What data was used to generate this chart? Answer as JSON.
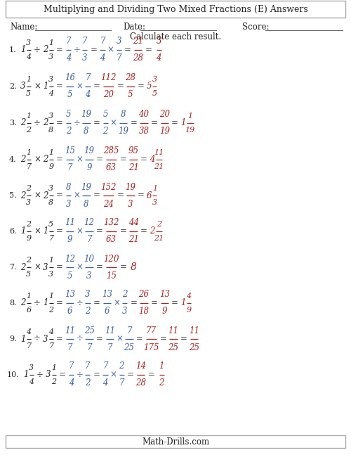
{
  "title": "Multiplying and Dividing Two Mixed Fractions (E) Answers",
  "instruction": "Calculate each result.",
  "footer": "Math-Drills.com",
  "problems": [
    {
      "num": "1.",
      "q_whole1": "1",
      "q_num1": "3",
      "q_den1": "4",
      "op": "÷",
      "q_whole2": "2",
      "q_num2": "1",
      "q_den2": "3",
      "s1_num1": "7",
      "s1_den1": "4",
      "s1_op": "÷",
      "s1_num2": "7",
      "s1_den2": "3",
      "s2_num1": "7",
      "s2_den1": "4",
      "s2_op": "×",
      "s2_num2": "3",
      "s2_den2": "7",
      "s3_num": "21",
      "s3_den": "28",
      "s4_num": "",
      "s4_den": "",
      "ans_whole": "",
      "ans_num": "3",
      "ans_den": "4"
    },
    {
      "num": "2.",
      "q_whole1": "3",
      "q_num1": "1",
      "q_den1": "5",
      "op": "×",
      "q_whole2": "1",
      "q_num2": "3",
      "q_den2": "4",
      "s1_num1": "16",
      "s1_den1": "5",
      "s1_op": "×",
      "s1_num2": "7",
      "s1_den2": "4",
      "s2_num1": "",
      "s2_den1": "",
      "s2_op": "",
      "s2_num2": "",
      "s2_den2": "",
      "s3_num": "112",
      "s3_den": "20",
      "s4_num": "28",
      "s4_den": "5",
      "ans_whole": "5",
      "ans_num": "3",
      "ans_den": "5"
    },
    {
      "num": "3.",
      "q_whole1": "2",
      "q_num1": "1",
      "q_den1": "2",
      "op": "÷",
      "q_whole2": "2",
      "q_num2": "3",
      "q_den2": "8",
      "s1_num1": "5",
      "s1_den1": "2",
      "s1_op": "÷",
      "s1_num2": "19",
      "s1_den2": "8",
      "s2_num1": "5",
      "s2_den1": "2",
      "s2_op": "×",
      "s2_num2": "8",
      "s2_den2": "19",
      "s3_num": "40",
      "s3_den": "38",
      "s4_num": "20",
      "s4_den": "19",
      "ans_whole": "1",
      "ans_num": "1",
      "ans_den": "19"
    },
    {
      "num": "4.",
      "q_whole1": "2",
      "q_num1": "1",
      "q_den1": "7",
      "op": "×",
      "q_whole2": "2",
      "q_num2": "1",
      "q_den2": "9",
      "s1_num1": "15",
      "s1_den1": "7",
      "s1_op": "×",
      "s1_num2": "19",
      "s1_den2": "9",
      "s2_num1": "",
      "s2_den1": "",
      "s2_op": "",
      "s2_num2": "",
      "s2_den2": "",
      "s3_num": "285",
      "s3_den": "63",
      "s4_num": "95",
      "s4_den": "21",
      "ans_whole": "4",
      "ans_num": "11",
      "ans_den": "21"
    },
    {
      "num": "5.",
      "q_whole1": "2",
      "q_num1": "2",
      "q_den1": "3",
      "op": "×",
      "q_whole2": "2",
      "q_num2": "3",
      "q_den2": "8",
      "s1_num1": "8",
      "s1_den1": "3",
      "s1_op": "×",
      "s1_num2": "19",
      "s1_den2": "8",
      "s2_num1": "",
      "s2_den1": "",
      "s2_op": "",
      "s2_num2": "",
      "s2_den2": "",
      "s3_num": "152",
      "s3_den": "24",
      "s4_num": "19",
      "s4_den": "3",
      "ans_whole": "6",
      "ans_num": "1",
      "ans_den": "3"
    },
    {
      "num": "6.",
      "q_whole1": "1",
      "q_num1": "2",
      "q_den1": "9",
      "op": "×",
      "q_whole2": "1",
      "q_num2": "5",
      "q_den2": "7",
      "s1_num1": "11",
      "s1_den1": "9",
      "s1_op": "×",
      "s1_num2": "12",
      "s1_den2": "7",
      "s2_num1": "",
      "s2_den1": "",
      "s2_op": "",
      "s2_num2": "",
      "s2_den2": "",
      "s3_num": "132",
      "s3_den": "63",
      "s4_num": "44",
      "s4_den": "21",
      "ans_whole": "2",
      "ans_num": "2",
      "ans_den": "21"
    },
    {
      "num": "7.",
      "q_whole1": "2",
      "q_num1": "2",
      "q_den1": "5",
      "op": "×",
      "q_whole2": "3",
      "q_num2": "1",
      "q_den2": "3",
      "s1_num1": "12",
      "s1_den1": "5",
      "s1_op": "×",
      "s1_num2": "10",
      "s1_den2": "3",
      "s2_num1": "",
      "s2_den1": "",
      "s2_op": "",
      "s2_num2": "",
      "s2_den2": "",
      "s3_num": "120",
      "s3_den": "15",
      "s4_num": "",
      "s4_den": "",
      "ans_whole": "8",
      "ans_num": "",
      "ans_den": ""
    },
    {
      "num": "8.",
      "q_whole1": "2",
      "q_num1": "1",
      "q_den1": "6",
      "op": "÷",
      "q_whole2": "1",
      "q_num2": "1",
      "q_den2": "2",
      "s1_num1": "13",
      "s1_den1": "6",
      "s1_op": "÷",
      "s1_num2": "3",
      "s1_den2": "2",
      "s2_num1": "13",
      "s2_den1": "6",
      "s2_op": "×",
      "s2_num2": "2",
      "s2_den2": "3",
      "s3_num": "26",
      "s3_den": "18",
      "s4_num": "13",
      "s4_den": "9",
      "ans_whole": "1",
      "ans_num": "4",
      "ans_den": "9"
    },
    {
      "num": "9.",
      "q_whole1": "1",
      "q_num1": "4",
      "q_den1": "7",
      "op": "÷",
      "q_whole2": "3",
      "q_num2": "4",
      "q_den2": "7",
      "s1_num1": "11",
      "s1_den1": "7",
      "s1_op": "÷",
      "s1_num2": "25",
      "s1_den2": "7",
      "s2_num1": "11",
      "s2_den1": "7",
      "s2_op": "×",
      "s2_num2": "7",
      "s2_den2": "25",
      "s3_num": "77",
      "s3_den": "175",
      "s4_num": "11",
      "s4_den": "25",
      "ans_whole": "",
      "ans_num": "11",
      "ans_den": "25"
    },
    {
      "num": "10.",
      "q_whole1": "1",
      "q_num1": "3",
      "q_den1": "4",
      "op": "÷",
      "q_whole2": "3",
      "q_num2": "1",
      "q_den2": "2",
      "s1_num1": "7",
      "s1_den1": "4",
      "s1_op": "÷",
      "s1_num2": "7",
      "s1_den2": "2",
      "s2_num1": "7",
      "s2_den1": "4",
      "s2_op": "×",
      "s2_num2": "2",
      "s2_den2": "7",
      "s3_num": "14",
      "s3_den": "28",
      "s4_num": "",
      "s4_den": "",
      "ans_whole": "",
      "ans_num": "1",
      "ans_den": "2"
    }
  ]
}
